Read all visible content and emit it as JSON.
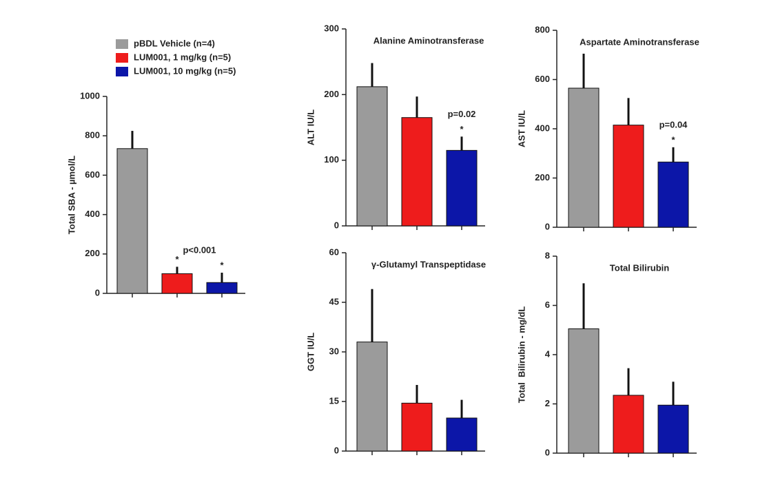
{
  "legend": [
    {
      "name": "pBDL Vehicle (n=4)",
      "color": "#9b9b9b"
    },
    {
      "name": "LUM001, 1 mg/kg (n=5)",
      "color": "#ee1c1c"
    },
    {
      "name": "LUM001, 10 mg/kg (n=5)",
      "color": "#0c16a8"
    }
  ],
  "chart_data": [
    {
      "type": "bar",
      "ylabel": "Total SBA - µmol/L",
      "values": [
        735,
        100,
        55
      ],
      "errors": [
        90,
        35,
        50
      ],
      "colors": [
        "#9b9b9b",
        "#ee1c1c",
        "#0c16a8"
      ],
      "ylim": [
        0,
        1000
      ],
      "yticks": [
        0,
        200,
        400,
        600,
        800,
        1000
      ],
      "annotation": "p<0.001",
      "marks": [
        null,
        "*",
        "*"
      ]
    },
    {
      "type": "bar",
      "title": "Alanine Aminotransferase",
      "ylabel": "ALT IU/L",
      "values": [
        212,
        165,
        115
      ],
      "errors": [
        36,
        32,
        21
      ],
      "colors": [
        "#9b9b9b",
        "#ee1c1c",
        "#0c16a8"
      ],
      "ylim": [
        0,
        300
      ],
      "yticks": [
        0,
        100,
        200,
        300
      ],
      "annotation": "p=0.02",
      "marks": [
        null,
        null,
        "*"
      ]
    },
    {
      "type": "bar",
      "title": "Aspartate Aminotransferase",
      "ylabel": "AST IU/L",
      "values": [
        565,
        415,
        265
      ],
      "errors": [
        140,
        110,
        60
      ],
      "colors": [
        "#9b9b9b",
        "#ee1c1c",
        "#0c16a8"
      ],
      "ylim": [
        0,
        800
      ],
      "yticks": [
        0,
        200,
        400,
        600,
        800
      ],
      "annotation": "p=0.04",
      "marks": [
        null,
        null,
        "*"
      ]
    },
    {
      "type": "bar",
      "title": "γ-Glutamyl Transpeptidase",
      "ylabel": "GGT IU/L",
      "values": [
        33,
        14.5,
        10
      ],
      "errors": [
        16,
        5.5,
        5.5
      ],
      "colors": [
        "#9b9b9b",
        "#ee1c1c",
        "#0c16a8"
      ],
      "ylim": [
        0,
        60
      ],
      "yticks": [
        0,
        15,
        30,
        45,
        60
      ]
    },
    {
      "type": "bar",
      "title": "Total Bilirubin",
      "ylabel": "Total  Bilirubin - mg/dL",
      "values": [
        5.05,
        2.35,
        1.95
      ],
      "errors": [
        1.85,
        1.1,
        0.95
      ],
      "colors": [
        "#9b9b9b",
        "#ee1c1c",
        "#0c16a8"
      ],
      "ylim": [
        0,
        8
      ],
      "yticks": [
        0,
        2,
        4,
        6,
        8
      ]
    }
  ]
}
